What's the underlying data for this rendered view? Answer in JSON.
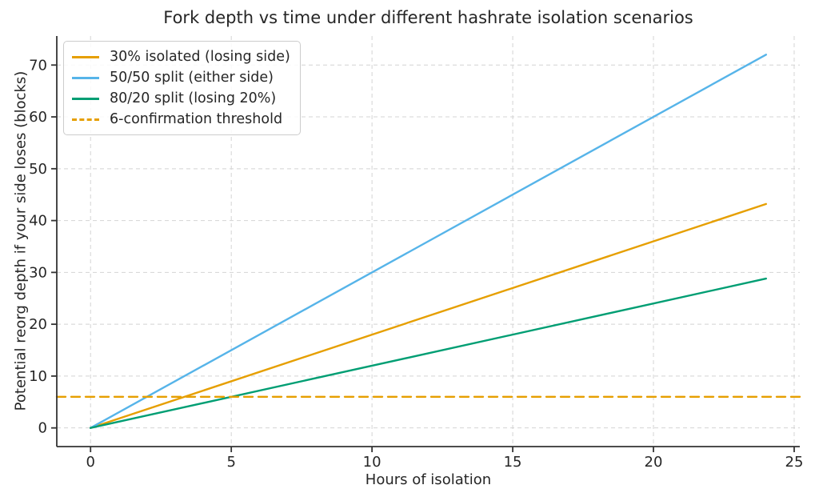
{
  "chart_data": {
    "type": "line",
    "title": "Fork depth vs time under different hashrate isolation scenarios",
    "xlabel": "Hours of isolation",
    "ylabel": "Potential reorg depth if your side loses (blocks)",
    "x_ticks": [
      0,
      5,
      10,
      15,
      20,
      25
    ],
    "y_ticks": [
      0,
      10,
      20,
      30,
      40,
      50,
      60,
      70
    ],
    "xlim": [
      -1.2,
      25.2
    ],
    "ylim": [
      -3.6,
      75.6
    ],
    "grid": {
      "visible": true,
      "linestyle": "dashed",
      "color": "#d4d4d4"
    },
    "legend_position": "upper-left",
    "series": [
      {
        "name": "30% isolated (losing side)",
        "color": "#E69F00",
        "style": "solid",
        "x": [
          0,
          24
        ],
        "values": [
          0,
          43.2
        ]
      },
      {
        "name": "50/50 split (either side)",
        "color": "#56B4E9",
        "style": "solid",
        "x": [
          0,
          24
        ],
        "values": [
          0,
          72
        ]
      },
      {
        "name": "80/20 split (losing 20%)",
        "color": "#009E73",
        "style": "solid",
        "x": [
          0,
          24
        ],
        "values": [
          0,
          28.8
        ]
      },
      {
        "name": "6-confirmation threshold",
        "color": "#E69F00",
        "style": "dashed",
        "type": "hline",
        "y": 6
      }
    ],
    "colors": {
      "text": "#262626",
      "axis": "#333333",
      "grid": "#d4d4d4",
      "background": "#ffffff"
    }
  }
}
